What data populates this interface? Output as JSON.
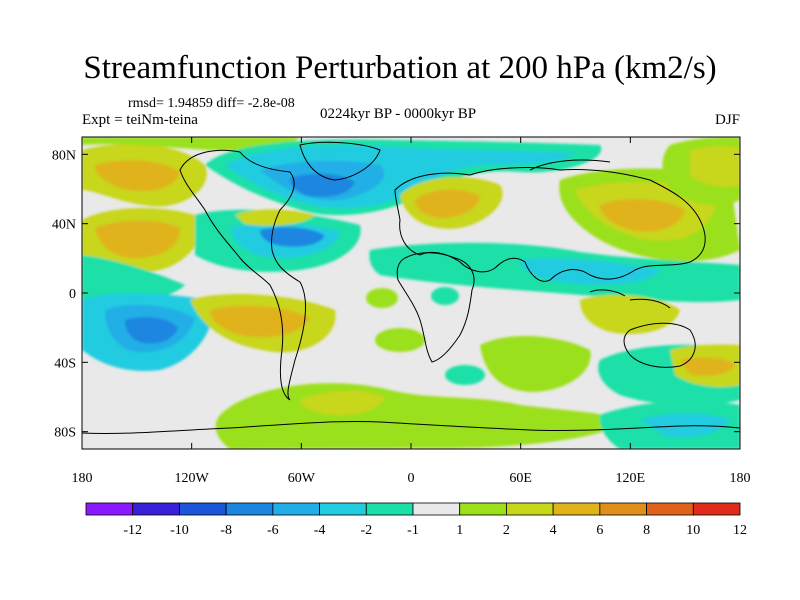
{
  "title": "Streamfunction Perturbation at 200 hPa (km2/s)",
  "stats": "rmsd= 1.94859 diff= -2.8e-08",
  "experiment": "Expt = teiNm-teina",
  "period": "0224kyr BP - 0000kyr BP",
  "season": "DJF",
  "map": {
    "type": "filled-contour",
    "projection": "cylindrical-equidistant",
    "lon_range": [
      -180,
      180
    ],
    "lat_range": [
      -90,
      90
    ],
    "x_ticks": [
      {
        "value": -180,
        "label": "180"
      },
      {
        "value": -120,
        "label": "120W"
      },
      {
        "value": -60,
        "label": "60W"
      },
      {
        "value": 0,
        "label": "0"
      },
      {
        "value": 60,
        "label": "60E"
      },
      {
        "value": 120,
        "label": "120E"
      },
      {
        "value": 180,
        "label": "180"
      }
    ],
    "y_ticks": [
      {
        "value": 80,
        "label": "80N"
      },
      {
        "value": 40,
        "label": "40N"
      },
      {
        "value": 0,
        "label": "0"
      },
      {
        "value": -40,
        "label": "40S"
      },
      {
        "value": -80,
        "label": "80S"
      }
    ]
  },
  "legend": {
    "bins": [
      {
        "color": "#8c1aff"
      },
      {
        "color": "#3a1fd9"
      },
      {
        "color": "#1a56d9"
      },
      {
        "color": "#1a86e0"
      },
      {
        "color": "#21aee6"
      },
      {
        "color": "#21cce0"
      },
      {
        "color": "#1ae0a8"
      },
      {
        "color": "#e9e9e9"
      },
      {
        "color": "#9be01a"
      },
      {
        "color": "#c8d61a"
      },
      {
        "color": "#e0b31a"
      },
      {
        "color": "#e08f1a"
      },
      {
        "color": "#e0621a"
      },
      {
        "color": "#e02a1a"
      }
    ],
    "labels": [
      "-12",
      "-10",
      "-8",
      "-6",
      "-4",
      "-2",
      "-1",
      "1",
      "2",
      "4",
      "6",
      "8",
      "10",
      "12"
    ]
  },
  "colors": {
    "neutral": "#e9e9e9",
    "coast": "#000000"
  }
}
